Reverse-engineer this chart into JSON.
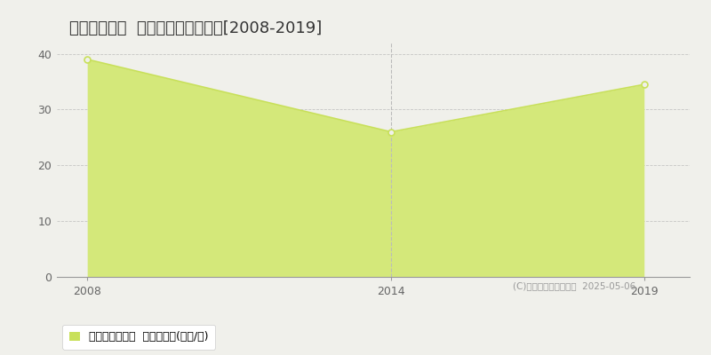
{
  "title": "和歌山市中島  マンション価格推移[2008-2019]",
  "years": [
    2008,
    2014,
    2019
  ],
  "values": [
    39,
    26,
    34.5
  ],
  "line_color": "#c8e05a",
  "fill_color": "#d4e87a",
  "fill_alpha": 1.0,
  "marker_color": "#c8e05a",
  "xlim": [
    2007.4,
    2019.9
  ],
  "ylim": [
    0,
    42
  ],
  "yticks": [
    0,
    10,
    20,
    30,
    40
  ],
  "xticks": [
    2008,
    2014,
    2019
  ],
  "grid_color": "#bbbbbb",
  "vline_x": 2014,
  "vline_color": "#bbbbbb",
  "bg_color": "#f0f0eb",
  "plot_bg_color": "#f0f0eb",
  "legend_label": "マンション価格  平均坪単価(万円/坪)",
  "legend_marker_color": "#c8e05a",
  "copyright_text": "(C)土地価格ドットコム  2025-05-06",
  "title_fontsize": 13,
  "axis_fontsize": 9,
  "legend_fontsize": 9
}
